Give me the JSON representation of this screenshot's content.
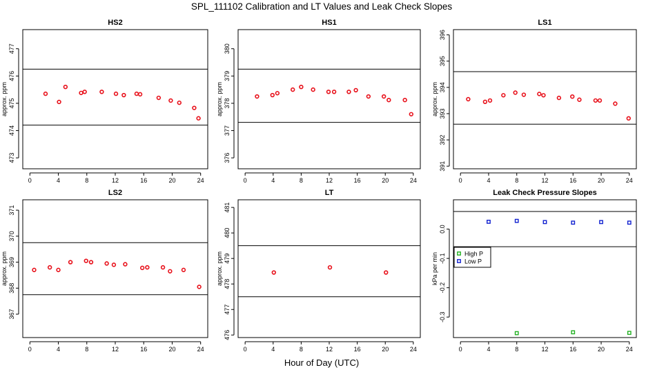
{
  "title": "SPL_111102  Calibration and LT Values and Leak Check Slopes",
  "xlabel": "Hour of Day (UTC)",
  "colors": {
    "marker": "#e8101a",
    "high_p": "#20b020",
    "low_p": "#1020d0",
    "refline": "#000000"
  },
  "chart_data": [
    {
      "type": "scatter",
      "title": "HS2",
      "ylabel": "approx. ppm",
      "xticks": [
        "0",
        "4",
        "8",
        "12",
        "16",
        "20",
        "24"
      ],
      "xlim": [
        -1,
        25
      ],
      "ylim": [
        472.6,
        477.7
      ],
      "yticks": [
        "473",
        "474",
        "475",
        "476",
        "477"
      ],
      "hlines": [
        476.25,
        474.2
      ],
      "points": [
        [
          2.2,
          475.35
        ],
        [
          4.1,
          475.05
        ],
        [
          5.0,
          475.6
        ],
        [
          7.2,
          475.38
        ],
        [
          7.7,
          475.42
        ],
        [
          10.1,
          475.42
        ],
        [
          12.1,
          475.35
        ],
        [
          13.2,
          475.3
        ],
        [
          15.0,
          475.35
        ],
        [
          15.5,
          475.33
        ],
        [
          18.1,
          475.2
        ],
        [
          19.8,
          475.1
        ],
        [
          21.0,
          475.02
        ],
        [
          23.1,
          474.83
        ],
        [
          23.7,
          474.45
        ]
      ]
    },
    {
      "type": "scatter",
      "title": "HS1",
      "ylabel": "approx. ppm",
      "xticks": [
        "0",
        "4",
        "8",
        "12",
        "16",
        "20",
        "24"
      ],
      "xlim": [
        -1,
        25
      ],
      "ylim": [
        375.6,
        380.7
      ],
      "yticks": [
        "376",
        "377",
        "378",
        "379",
        "380"
      ],
      "hlines": [
        379.25,
        377.3
      ],
      "points": [
        [
          1.7,
          378.25
        ],
        [
          3.9,
          378.3
        ],
        [
          4.6,
          378.37
        ],
        [
          6.8,
          378.5
        ],
        [
          8.0,
          378.6
        ],
        [
          9.7,
          378.5
        ],
        [
          11.9,
          378.42
        ],
        [
          12.7,
          378.42
        ],
        [
          14.8,
          378.42
        ],
        [
          15.8,
          378.48
        ],
        [
          17.6,
          378.25
        ],
        [
          19.8,
          378.25
        ],
        [
          20.5,
          378.12
        ],
        [
          22.8,
          378.12
        ],
        [
          23.7,
          377.6
        ]
      ]
    },
    {
      "type": "scatter",
      "title": "LS1",
      "ylabel": "approx. ppm",
      "xticks": [
        "0",
        "4",
        "8",
        "12",
        "16",
        "20",
        "24"
      ],
      "xlim": [
        -1,
        25
      ],
      "ylim": [
        390.9,
        396.2
      ],
      "yticks": [
        "391",
        "392",
        "393",
        "394",
        "395",
        "396"
      ],
      "hlines": [
        394.6,
        392.6
      ],
      "points": [
        [
          1.1,
          393.55
        ],
        [
          3.5,
          393.45
        ],
        [
          4.2,
          393.5
        ],
        [
          6.1,
          393.7
        ],
        [
          7.8,
          393.8
        ],
        [
          9.0,
          393.72
        ],
        [
          11.2,
          393.75
        ],
        [
          11.8,
          393.7
        ],
        [
          14.0,
          393.6
        ],
        [
          15.9,
          393.65
        ],
        [
          16.9,
          393.53
        ],
        [
          19.2,
          393.5
        ],
        [
          19.8,
          393.5
        ],
        [
          22.0,
          393.38
        ],
        [
          23.9,
          392.82
        ]
      ]
    },
    {
      "type": "scatter",
      "title": "LS2",
      "ylabel": "approx. ppm",
      "xticks": [
        "0",
        "4",
        "8",
        "12",
        "16",
        "20",
        "24"
      ],
      "xlim": [
        -1,
        25
      ],
      "ylim": [
        366.1,
        371.4
      ],
      "yticks": [
        "367",
        "368",
        "369",
        "370",
        "371"
      ],
      "hlines": [
        369.75,
        367.75
      ],
      "points": [
        [
          0.6,
          368.7
        ],
        [
          2.8,
          368.8
        ],
        [
          4.0,
          368.7
        ],
        [
          5.7,
          369.0
        ],
        [
          7.9,
          369.05
        ],
        [
          8.6,
          369.0
        ],
        [
          10.8,
          368.95
        ],
        [
          11.8,
          368.9
        ],
        [
          13.4,
          368.92
        ],
        [
          15.8,
          368.78
        ],
        [
          16.5,
          368.8
        ],
        [
          18.7,
          368.8
        ],
        [
          19.7,
          368.65
        ],
        [
          21.6,
          368.7
        ],
        [
          23.8,
          368.05
        ]
      ]
    },
    {
      "type": "scatter",
      "title": "LT",
      "ylabel": "approx. ppm",
      "xticks": [
        "0",
        "4",
        "8",
        "12",
        "16",
        "20",
        "24"
      ],
      "xlim": [
        -1,
        25
      ],
      "ylim": [
        475.9,
        481.3
      ],
      "yticks": [
        "476",
        "477",
        "478",
        "479",
        "480",
        "481"
      ],
      "hlines": [
        479.5,
        477.5
      ],
      "points": [
        [
          4.1,
          478.45
        ],
        [
          12.1,
          478.65
        ],
        [
          20.1,
          478.45
        ]
      ]
    },
    {
      "type": "scatter",
      "title": "Leak Check Pressure Slopes",
      "ylabel": "kPa per min",
      "xticks": [
        "0",
        "4",
        "8",
        "12",
        "16",
        "20",
        "24"
      ],
      "xlim": [
        -1,
        25
      ],
      "ylim": [
        -0.37,
        0.1
      ],
      "yticks": [
        "-0.3",
        "-0.2",
        "-0.1",
        "0.0"
      ],
      "hlines": [
        0.06,
        -0.06
      ],
      "legend": {
        "placement": "center-left",
        "entries": [
          "High P",
          "Low P"
        ]
      },
      "series": [
        {
          "name": "High P",
          "points": [
            [
              8,
              -0.355
            ],
            [
              16,
              -0.352
            ],
            [
              24,
              -0.354
            ]
          ]
        },
        {
          "name": "Low P",
          "points": [
            [
              4,
              0.025
            ],
            [
              8,
              0.028
            ],
            [
              12,
              0.024
            ],
            [
              16,
              0.022
            ],
            [
              20,
              0.024
            ],
            [
              24,
              0.022
            ]
          ]
        }
      ]
    }
  ]
}
